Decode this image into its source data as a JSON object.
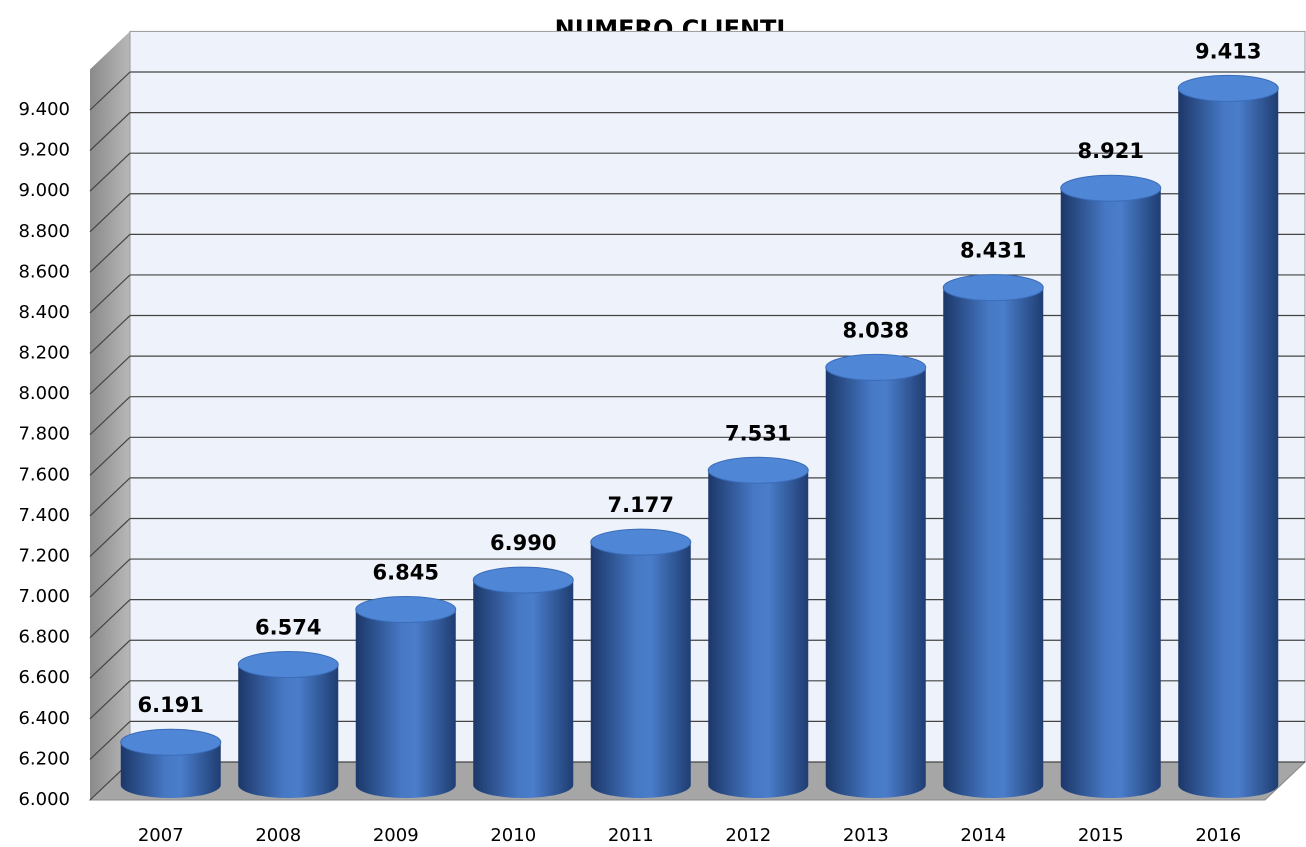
{
  "chart_data": {
    "type": "bar",
    "title": "NUMERO CLIENTI",
    "categories": [
      "2007",
      "2008",
      "2009",
      "2010",
      "2011",
      "2012",
      "2013",
      "2014",
      "2015",
      "2016"
    ],
    "values": [
      6191,
      6574,
      6845,
      6990,
      7177,
      7531,
      8038,
      8431,
      8921,
      9413
    ],
    "value_labels": [
      "6.191",
      "6.574",
      "6.845",
      "6.990",
      "7.177",
      "7.531",
      "8.038",
      "8.431",
      "8.921",
      "9.413"
    ],
    "color": "#3a6cb8",
    "ylim": [
      6000,
      9600
    ],
    "yticks": [
      {
        "value": 6000,
        "label": "6.000"
      },
      {
        "value": 6200,
        "label": "6.200"
      },
      {
        "value": 6400,
        "label": "6.400"
      },
      {
        "value": 6600,
        "label": "6.600"
      },
      {
        "value": 6800,
        "label": "6.800"
      },
      {
        "value": 7000,
        "label": "7.000"
      },
      {
        "value": 7200,
        "label": "7.200"
      },
      {
        "value": 7400,
        "label": "7.400"
      },
      {
        "value": 7600,
        "label": "7.600"
      },
      {
        "value": 7800,
        "label": "7.800"
      },
      {
        "value": 8000,
        "label": "8.000"
      },
      {
        "value": 8200,
        "label": "8.200"
      },
      {
        "value": 8400,
        "label": "8.400"
      },
      {
        "value": 8600,
        "label": "8.600"
      },
      {
        "value": 8800,
        "label": "8.800"
      },
      {
        "value": 9000,
        "label": "9.000"
      },
      {
        "value": 9200,
        "label": "9.200"
      },
      {
        "value": 9400,
        "label": "9.400"
      }
    ],
    "grid": true
  }
}
